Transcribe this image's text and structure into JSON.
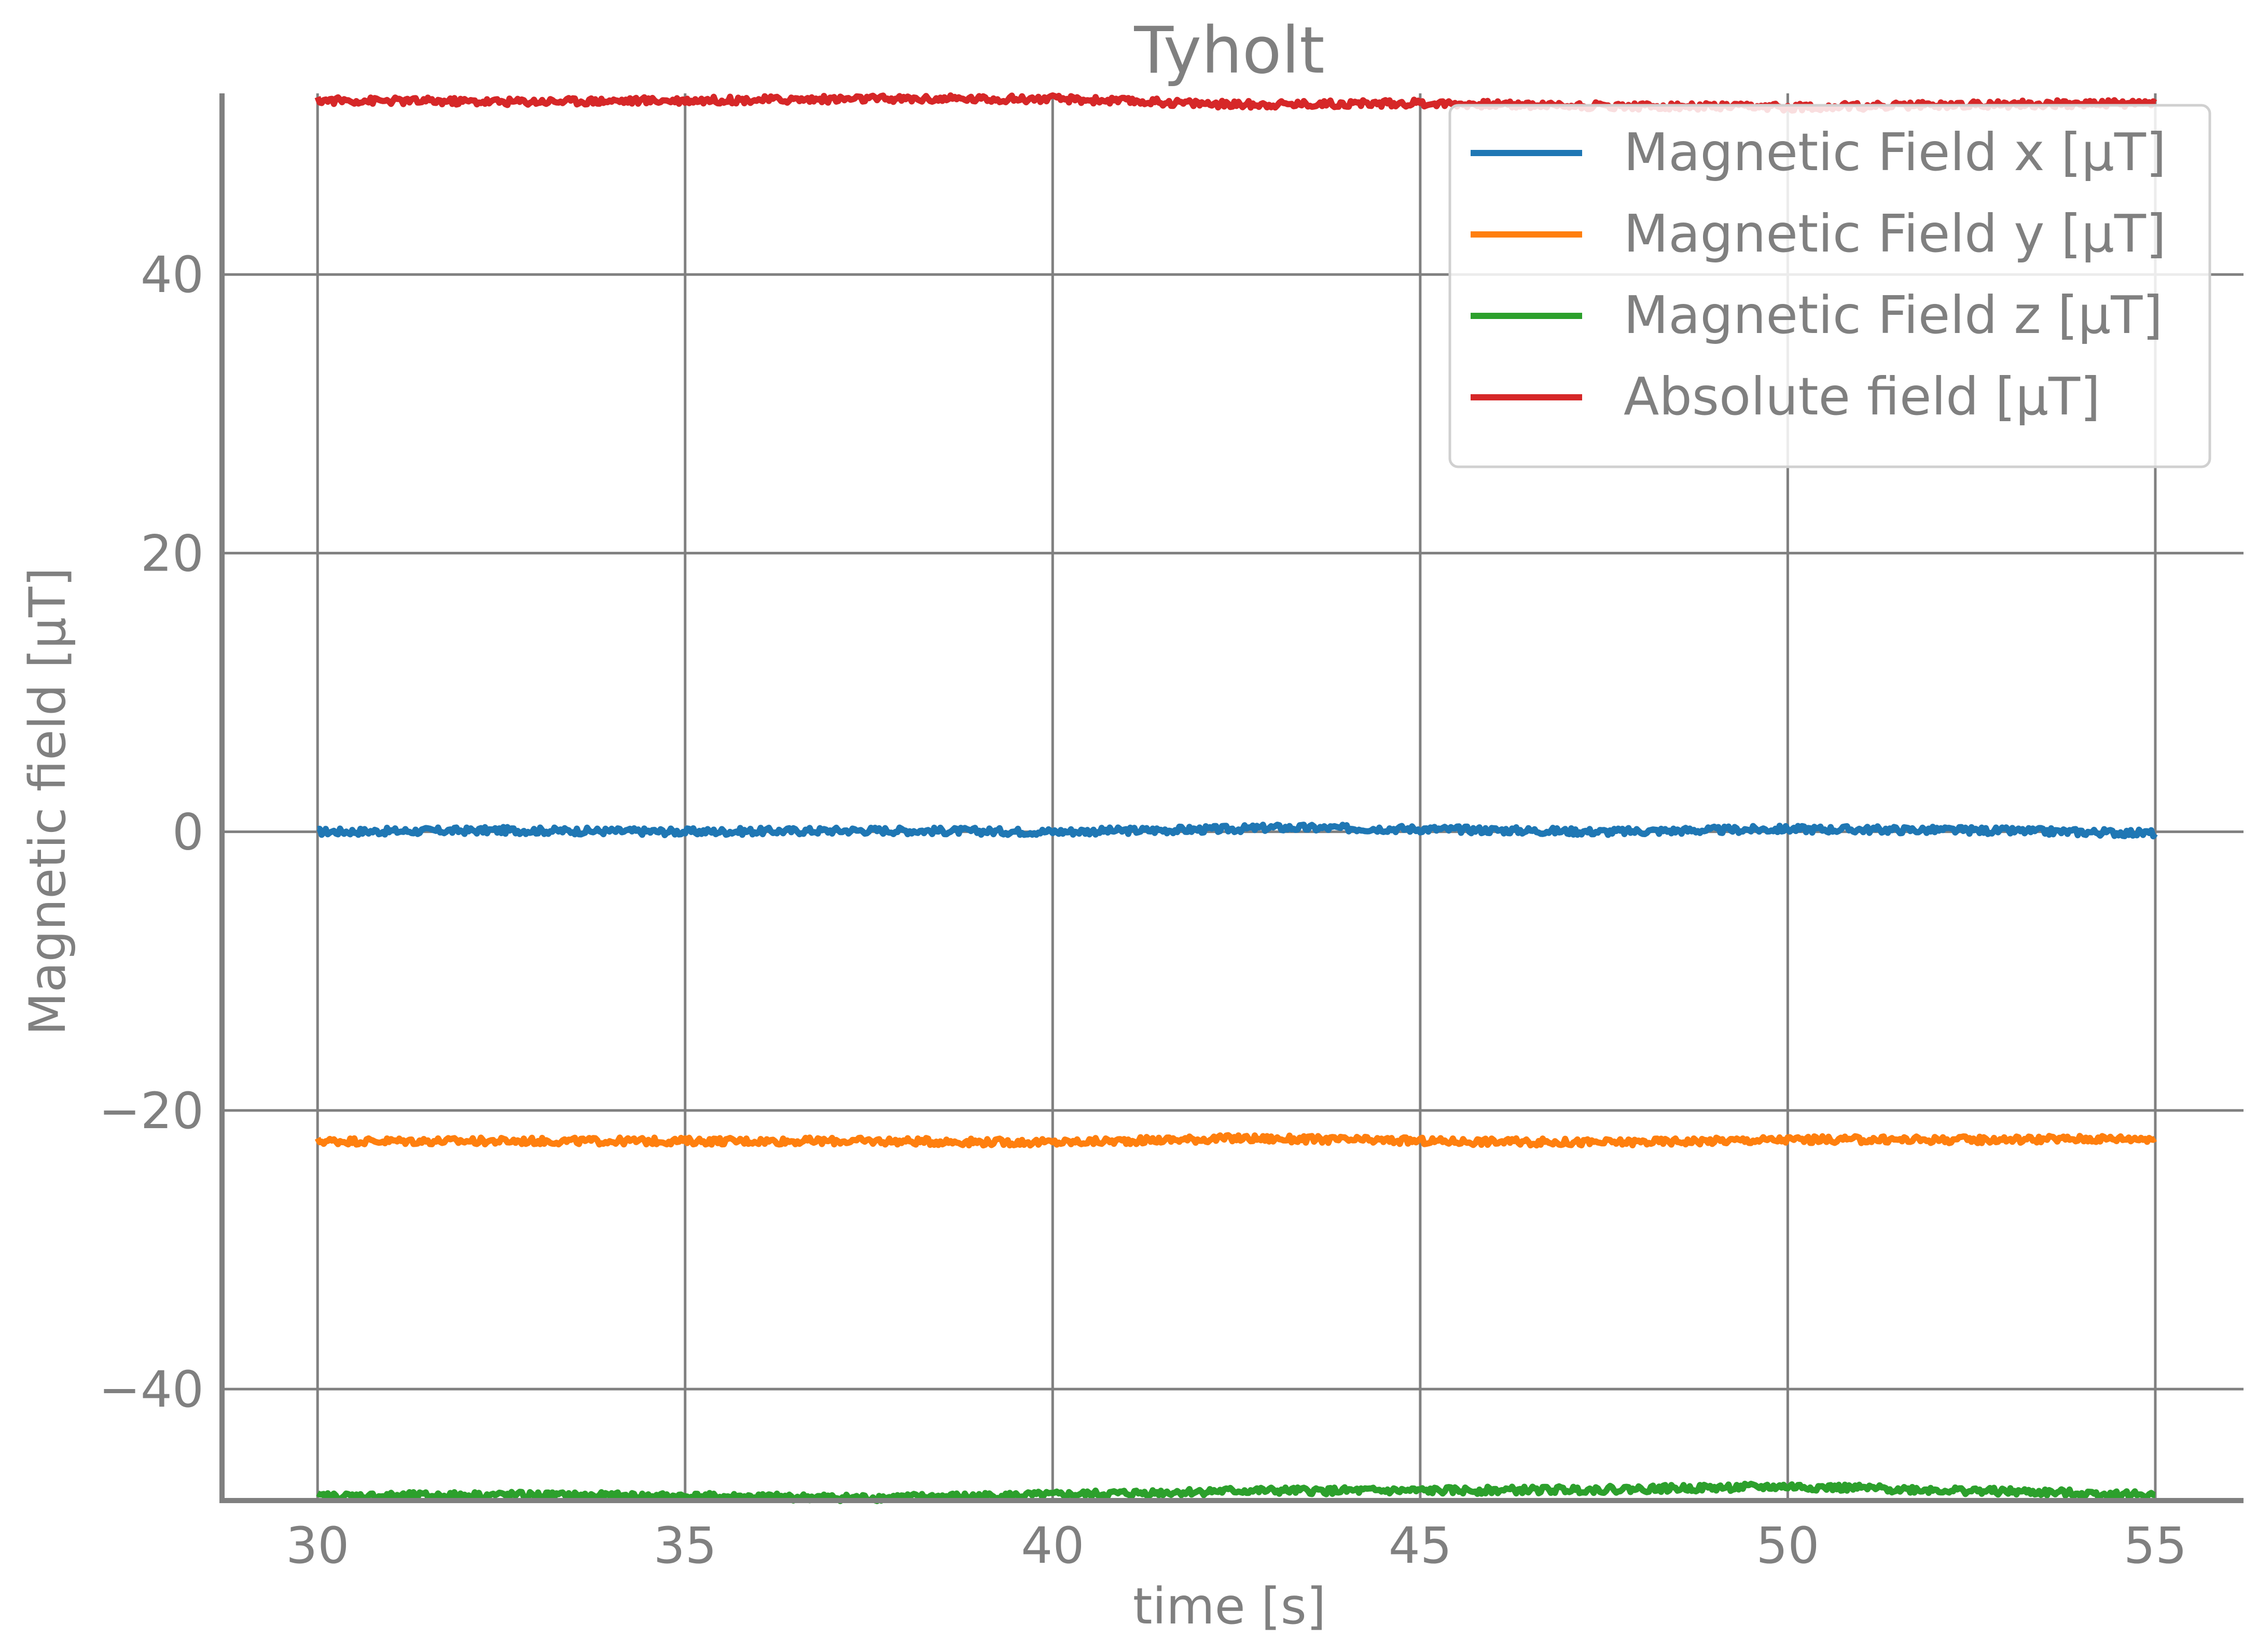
{
  "chart_data": {
    "type": "line",
    "title": "Tyholt",
    "xlabel": "time [s]",
    "ylabel": "Magnetic field [μT]",
    "xlim": [
      28.7,
      56.2
    ],
    "ylim": [
      -48,
      53
    ],
    "xticks": [
      30,
      35,
      40,
      45,
      50,
      55
    ],
    "yticks": [
      -40,
      -20,
      0,
      20,
      40
    ],
    "grid": true,
    "legend": "top-right",
    "series": [
      {
        "name": "Magnetic Field x [μT]",
        "color": "#1f77b4",
        "x": [
          30,
          32.5,
          35,
          37.5,
          40,
          42.5,
          43,
          45,
          47.5,
          50,
          52.5,
          55
        ],
        "values": [
          0.0,
          0.1,
          0.0,
          0.1,
          0.0,
          0.2,
          0.3,
          0.2,
          0.0,
          0.2,
          0.1,
          -0.1
        ]
      },
      {
        "name": "Magnetic Field y [μT]",
        "color": "#ff7f0e",
        "x": [
          30,
          32.5,
          35,
          37.5,
          40,
          42.5,
          45,
          47.5,
          50,
          52.5,
          55
        ],
        "values": [
          -22.2,
          -22.2,
          -22.2,
          -22.2,
          -22.3,
          -22.0,
          -22.2,
          -22.3,
          -22.1,
          -22.1,
          -22.0
        ]
      },
      {
        "name": "Magnetic Field z [μT]",
        "color": "#2ca02c",
        "x": [
          30,
          32.5,
          35,
          37.5,
          40,
          42.5,
          45,
          47.5,
          50,
          52.5,
          55
        ],
        "values": [
          -47.7,
          -47.6,
          -47.7,
          -47.8,
          -47.6,
          -47.3,
          -47.3,
          -47.2,
          -47.0,
          -47.3,
          -47.6
        ]
      },
      {
        "name": "Absolute field [μT]",
        "color": "#d62728",
        "x": [
          30,
          32.5,
          35,
          37.5,
          40,
          42.5,
          45,
          47.5,
          50,
          52.5,
          55
        ],
        "values": [
          52.5,
          52.4,
          52.5,
          52.6,
          52.6,
          52.2,
          52.3,
          52.1,
          52.0,
          52.2,
          52.3
        ]
      }
    ]
  }
}
